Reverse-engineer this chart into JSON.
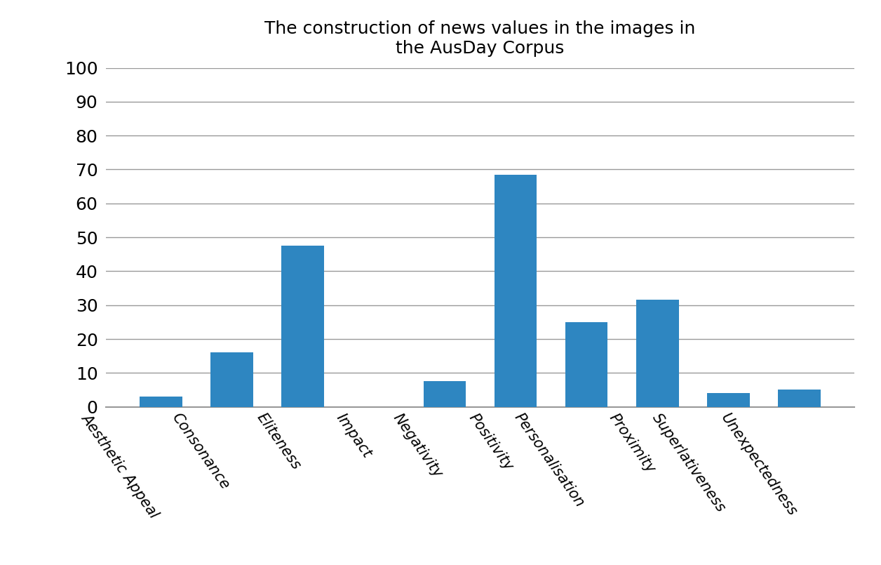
{
  "title": "The construction of news values in the images in\nthe AusDay Corpus",
  "categories": [
    "Aesthetic Appeal",
    "Consonance",
    "Eliteness",
    "Impact",
    "Negativity",
    "Positivity",
    "Personalisation",
    "Proximity",
    "Superlativeness",
    "Unexpectedness"
  ],
  "values": [
    3,
    16,
    47.5,
    0,
    7.5,
    68.5,
    25,
    31.5,
    4,
    5
  ],
  "bar_color": "#2e86c1",
  "ylim": [
    0,
    100
  ],
  "yticks": [
    0,
    10,
    20,
    30,
    40,
    50,
    60,
    70,
    80,
    90,
    100
  ],
  "title_fontsize": 18,
  "ytick_label_fontsize": 18,
  "xtick_label_fontsize": 15,
  "background_color": "#ffffff",
  "grid_color": "#999999",
  "bar_width": 0.6,
  "label_rotation": -55
}
